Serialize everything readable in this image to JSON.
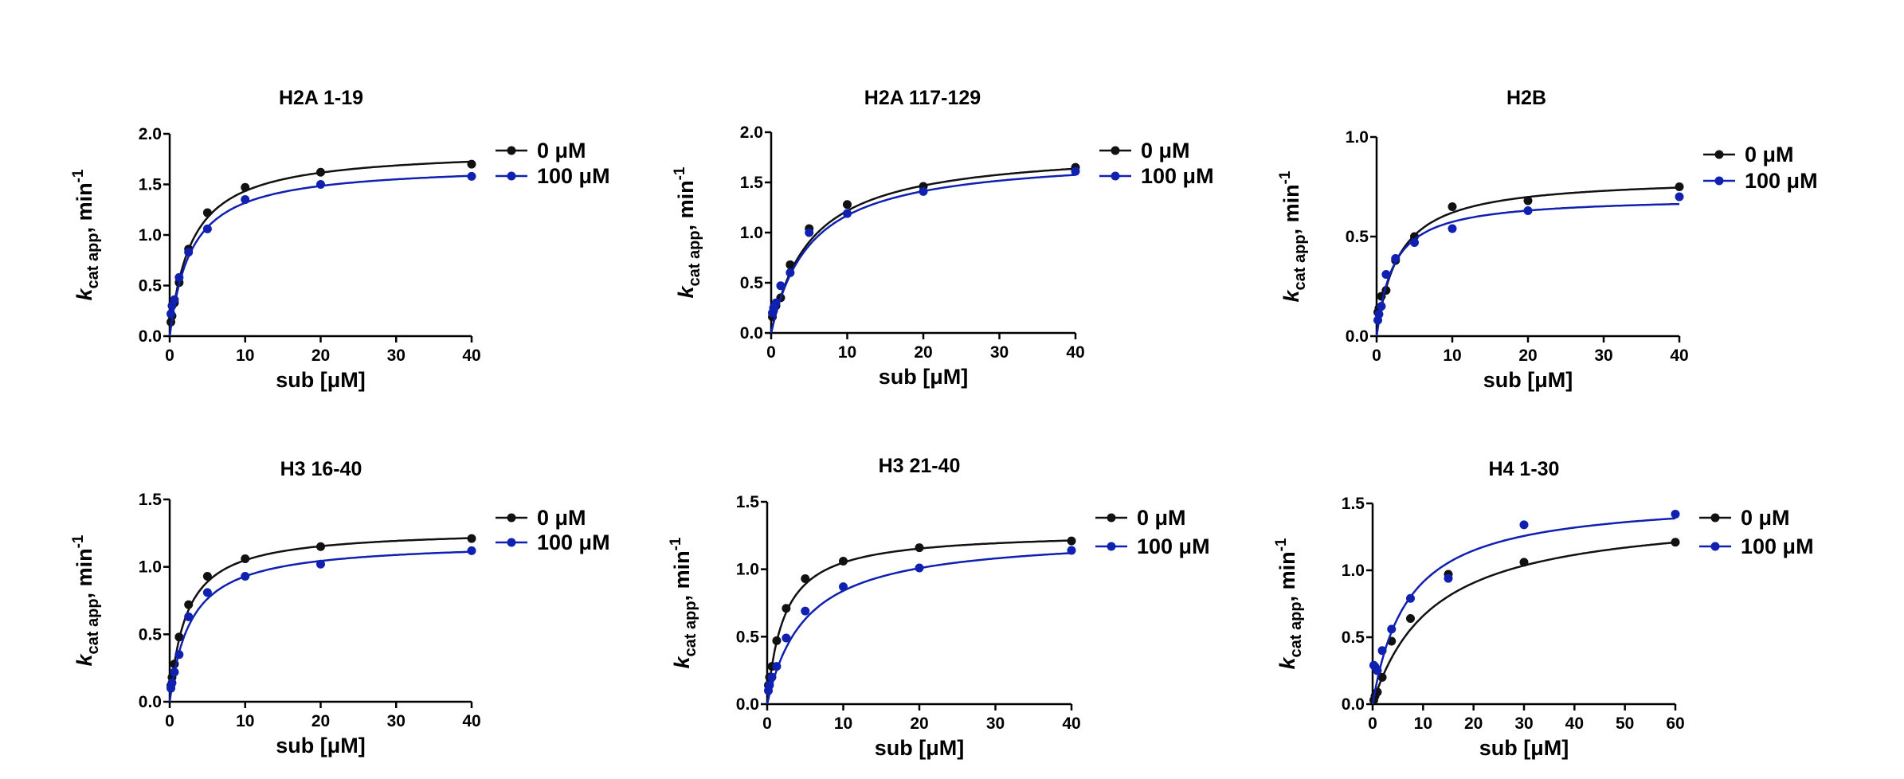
{
  "colors": {
    "series0": "#111111",
    "series1": "#1020b0"
  },
  "chart_data": [
    {
      "type": "scatter",
      "title": "H2A 1-19",
      "xlabel": "sub [μM]",
      "ylabel": {
        "k": "k",
        "sub": "cat app",
        "rest": ", min",
        "sup": "-1"
      },
      "xlim": [
        0,
        40
      ],
      "ylim": [
        0,
        2.0
      ],
      "xticks": [
        "0",
        "10",
        "20",
        "30",
        "40"
      ],
      "yticks": [
        "0.0",
        "0.5",
        "1.0",
        "1.5",
        "2.0"
      ],
      "legend": "right",
      "series": [
        {
          "name": "0 μM",
          "fit": {
            "vmax": 1.85,
            "km": 2.9
          },
          "x": [
            0.16,
            0.31,
            0.63,
            1.25,
            2.5,
            5,
            10,
            20,
            40
          ],
          "y": [
            0.14,
            0.2,
            0.33,
            0.53,
            0.86,
            1.22,
            1.47,
            1.62,
            1.7
          ]
        },
        {
          "name": "100 μM",
          "fit": {
            "vmax": 1.7,
            "km": 2.9
          },
          "x": [
            0.16,
            0.31,
            0.63,
            1.25,
            2.5,
            5,
            10,
            20,
            40
          ],
          "y": [
            0.22,
            0.3,
            0.36,
            0.58,
            0.83,
            1.06,
            1.35,
            1.5,
            1.58
          ]
        }
      ]
    },
    {
      "type": "scatter",
      "title": "H2A 117-129",
      "xlabel": "sub [μM]",
      "ylabel": {
        "k": "k",
        "sub": "cat app",
        "rest": ", min",
        "sup": "-1"
      },
      "xlim": [
        0,
        40
      ],
      "ylim": [
        0,
        2.0
      ],
      "xticks": [
        "0",
        "10",
        "20",
        "30",
        "40"
      ],
      "yticks": [
        "0.0",
        "0.5",
        "1.0",
        "1.5",
        "2.0"
      ],
      "legend": "right",
      "series": [
        {
          "name": "0 μM",
          "fit": {
            "vmax": 1.85,
            "km": 5.2
          },
          "x": [
            0.16,
            0.31,
            0.63,
            1.25,
            2.5,
            5,
            10,
            20,
            40
          ],
          "y": [
            0.16,
            0.22,
            0.27,
            0.35,
            0.68,
            1.04,
            1.28,
            1.46,
            1.65
          ]
        },
        {
          "name": "100 μM",
          "fit": {
            "vmax": 1.78,
            "km": 5.2
          },
          "x": [
            0.16,
            0.31,
            0.63,
            1.25,
            2.5,
            5,
            10,
            20,
            40
          ],
          "y": [
            0.2,
            0.25,
            0.3,
            0.47,
            0.6,
            1.0,
            1.19,
            1.41,
            1.61
          ]
        }
      ]
    },
    {
      "type": "scatter",
      "title": "H2B",
      "xlabel": "sub [μM]",
      "ylabel": {
        "k": "k",
        "sub": "cat app",
        "rest": ", min",
        "sup": "-1"
      },
      "xlim": [
        0,
        40
      ],
      "ylim": [
        0,
        1.0
      ],
      "xticks": [
        "0",
        "10",
        "20",
        "30",
        "40"
      ],
      "yticks": [
        "0.0",
        "0.5",
        "1.0"
      ],
      "legend": "right",
      "series": [
        {
          "name": "0 μM",
          "fit": {
            "vmax": 0.8,
            "km": 2.9
          },
          "x": [
            0.16,
            0.31,
            0.63,
            1.25,
            2.5,
            5,
            10,
            20,
            40
          ],
          "y": [
            0.12,
            0.14,
            0.2,
            0.23,
            0.38,
            0.5,
            0.65,
            0.68,
            0.75
          ]
        },
        {
          "name": "100 μM",
          "fit": {
            "vmax": 0.7,
            "km": 2.2
          },
          "x": [
            0.16,
            0.31,
            0.63,
            1.25,
            2.5,
            5,
            10,
            20,
            40
          ],
          "y": [
            0.08,
            0.11,
            0.15,
            0.31,
            0.39,
            0.47,
            0.54,
            0.63,
            0.7
          ]
        }
      ]
    },
    {
      "type": "scatter",
      "title": "H3 16-40",
      "xlabel": "sub [μM]",
      "ylabel": {
        "k": "k",
        "sub": "cat app",
        "rest": ", min",
        "sup": "-1"
      },
      "xlim": [
        0,
        40
      ],
      "ylim": [
        0,
        1.5
      ],
      "xticks": [
        "0",
        "10",
        "20",
        "30",
        "40"
      ],
      "yticks": [
        "0.0",
        "0.5",
        "1.0",
        "1.5"
      ],
      "legend": "right",
      "series": [
        {
          "name": "0 μM",
          "fit": {
            "vmax": 1.28,
            "km": 2.2
          },
          "x": [
            0.16,
            0.31,
            0.63,
            1.25,
            2.5,
            5,
            10,
            20,
            40
          ],
          "y": [
            0.12,
            0.18,
            0.28,
            0.48,
            0.72,
            0.93,
            1.06,
            1.15,
            1.21
          ]
        },
        {
          "name": "100 μM",
          "fit": {
            "vmax": 1.19,
            "km": 2.8
          },
          "x": [
            0.16,
            0.31,
            0.63,
            1.25,
            2.5,
            5,
            10,
            20,
            40
          ],
          "y": [
            0.1,
            0.14,
            0.22,
            0.35,
            0.63,
            0.81,
            0.93,
            1.02,
            1.12
          ]
        }
      ]
    },
    {
      "type": "scatter",
      "title": "H3 21-40",
      "xlabel": "sub [μM]",
      "ylabel": {
        "k": "k",
        "sub": "cat app",
        "rest": ", min",
        "sup": "-1"
      },
      "xlim": [
        0,
        40
      ],
      "ylim": [
        0,
        1.5
      ],
      "xticks": [
        "0",
        "10",
        "20",
        "30",
        "40"
      ],
      "yticks": [
        "0.0",
        "0.5",
        "1.0",
        "1.5"
      ],
      "legend": "right",
      "series": [
        {
          "name": "0 μM",
          "fit": {
            "vmax": 1.28,
            "km": 2.2
          },
          "x": [
            0.16,
            0.31,
            0.63,
            1.25,
            2.5,
            5,
            10,
            20,
            40
          ],
          "y": [
            0.14,
            0.2,
            0.28,
            0.47,
            0.71,
            0.93,
            1.06,
            1.16,
            1.21
          ]
        },
        {
          "name": "100 μM",
          "fit": {
            "vmax": 1.26,
            "km": 5.0
          },
          "x": [
            0.16,
            0.31,
            0.63,
            1.25,
            2.5,
            5,
            10,
            20,
            40
          ],
          "y": [
            0.1,
            0.14,
            0.2,
            0.28,
            0.49,
            0.69,
            0.87,
            1.01,
            1.14
          ]
        }
      ]
    },
    {
      "type": "scatter",
      "title": "H4 1-30",
      "xlabel": "sub [μM]",
      "ylabel": {
        "k": "k",
        "sub": "cat app",
        "rest": ", min",
        "sup": "-1"
      },
      "xlim": [
        0,
        60
      ],
      "ylim": [
        0,
        1.5
      ],
      "xticks": [
        "0",
        "10",
        "20",
        "30",
        "40",
        "50",
        "60"
      ],
      "yticks": [
        "0.0",
        "0.5",
        "1.0",
        "1.5"
      ],
      "legend": "right",
      "series": [
        {
          "name": "0 μM",
          "fit": {
            "vmax": 1.45,
            "km": 12
          },
          "x": [
            0.23,
            0.47,
            0.94,
            1.9,
            3.75,
            7.5,
            15,
            30,
            60
          ],
          "y": [
            0.03,
            0.06,
            0.09,
            0.2,
            0.47,
            0.64,
            0.97,
            1.06,
            1.21
          ]
        },
        {
          "name": "100 μM",
          "fit": {
            "vmax": 1.55,
            "km": 7
          },
          "x": [
            0.23,
            0.47,
            0.94,
            1.9,
            3.75,
            7.5,
            15,
            30,
            60
          ],
          "y": [
            0.29,
            0.28,
            0.25,
            0.4,
            0.56,
            0.79,
            0.94,
            1.34,
            1.42
          ]
        }
      ]
    }
  ]
}
